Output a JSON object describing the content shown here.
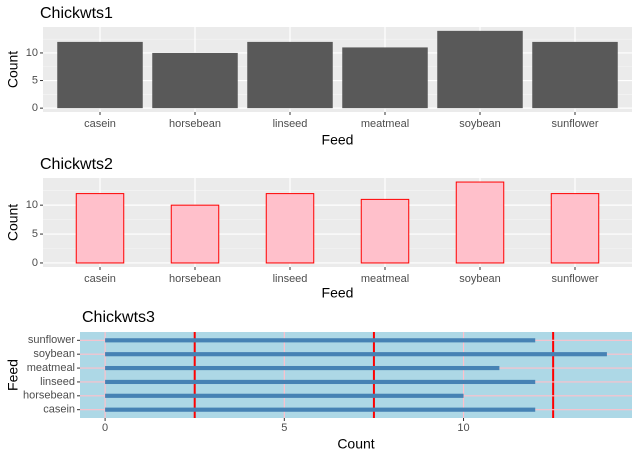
{
  "chart_data": [
    {
      "type": "bar",
      "title": "Chickwts1",
      "x_label": "Feed",
      "y_label": "Count",
      "categories": [
        "casein",
        "horsebean",
        "linseed",
        "meatmeal",
        "soybean",
        "sunflower"
      ],
      "values": [
        12,
        10,
        12,
        11,
        14,
        12
      ],
      "color": "#595959",
      "ylim": [
        -0.7,
        14.7
      ],
      "yticks": [
        0,
        5,
        10
      ],
      "yminor": [
        2.5,
        7.5,
        12.5
      ],
      "panel_color": "#ebebeb",
      "grid_color": "#ffffff",
      "minor_grid_color": "#f5f5f5",
      "grid": true
    },
    {
      "type": "bar",
      "title": "Chickwts2",
      "x_label": "Feed",
      "y_label": "Count",
      "categories": [
        "casein",
        "horsebean",
        "linseed",
        "meatmeal",
        "soybean",
        "sunflower"
      ],
      "values": [
        12,
        10,
        12,
        11,
        14,
        12
      ],
      "color": "pink",
      "edge_color": "red",
      "ylim": [
        -0.7,
        14.7
      ],
      "yticks": [
        0,
        5,
        10
      ],
      "yminor": [
        2.5,
        7.5,
        12.5
      ],
      "panel_color": "#ebebeb",
      "grid_color": "#ffffff",
      "minor_grid_color": "#f5f5f5",
      "grid": true
    },
    {
      "type": "bar",
      "orientation": "horizontal",
      "title": "Chickwts3",
      "x_label": "Count",
      "y_label": "Feed",
      "categories": [
        "casein",
        "horsebean",
        "linseed",
        "meatmeal",
        "soybean",
        "sunflower"
      ],
      "values": [
        12,
        10,
        12,
        11,
        14,
        12
      ],
      "color": "steelblue",
      "xlim": [
        -0.7,
        14.7
      ],
      "xticks": [
        0,
        5,
        10
      ],
      "xminor": [
        2.5,
        7.5,
        12.5
      ],
      "panel_color": "lightblue",
      "grid_color": "pink",
      "minor_grid_color": "red",
      "grid": true
    }
  ]
}
